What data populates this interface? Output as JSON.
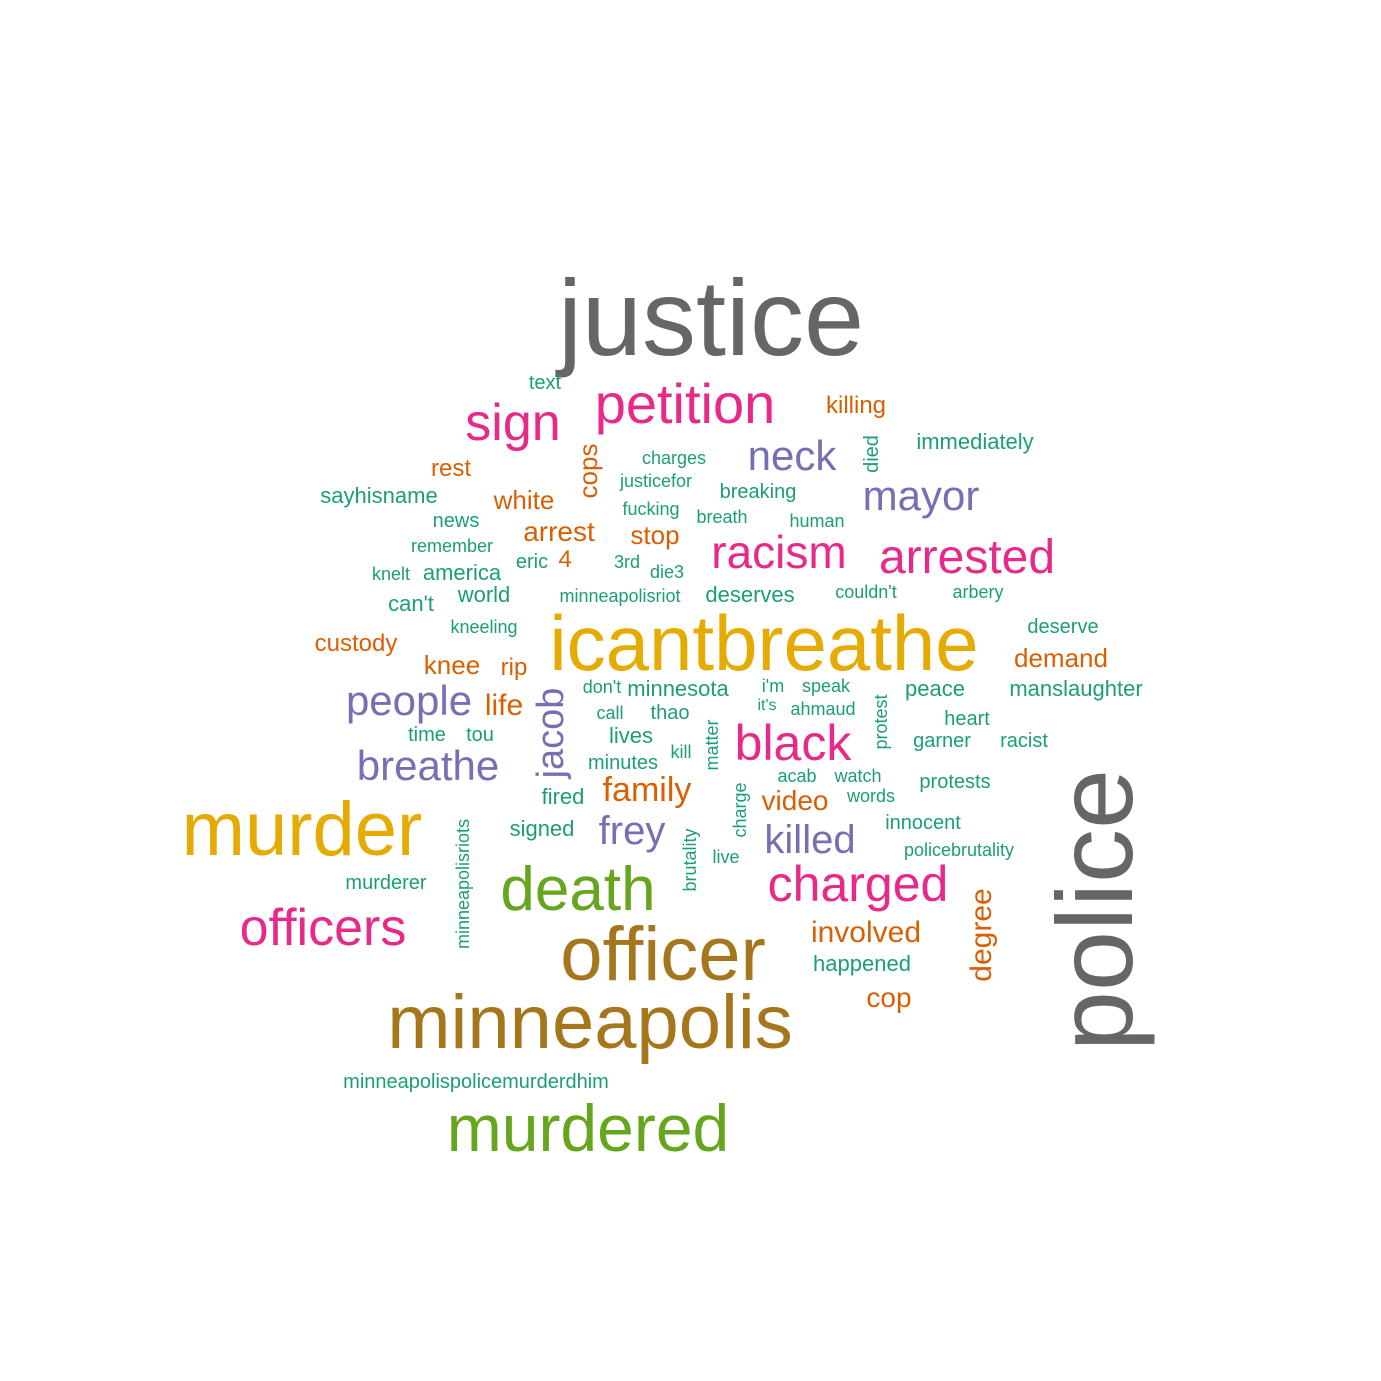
{
  "palette": {
    "gray": "#666666",
    "teal": "#1b9e77",
    "orange": "#d95f02",
    "purple": "#7570b3",
    "pink": "#e7298a",
    "green": "#66a61e",
    "gold": "#e6ab02",
    "brown": "#a6761d"
  },
  "words": [
    {
      "text": "justice",
      "color": "gray",
      "weight": 10
    },
    {
      "text": "police",
      "color": "gray",
      "weight": 10,
      "vertical": true
    },
    {
      "text": "icantbreathe",
      "color": "gold",
      "weight": 8
    },
    {
      "text": "murder",
      "color": "gold",
      "weight": 7
    },
    {
      "text": "minneapolis",
      "color": "brown",
      "weight": 8
    },
    {
      "text": "officer",
      "color": "brown",
      "weight": 8
    },
    {
      "text": "murdered",
      "color": "green",
      "weight": 7
    },
    {
      "text": "death",
      "color": "green",
      "weight": 6
    },
    {
      "text": "petition",
      "color": "pink",
      "weight": 5
    },
    {
      "text": "sign",
      "color": "pink",
      "weight": 5
    },
    {
      "text": "officers",
      "color": "pink",
      "weight": 5
    },
    {
      "text": "charged",
      "color": "pink",
      "weight": 5
    },
    {
      "text": "black",
      "color": "pink",
      "weight": 5
    },
    {
      "text": "arrested",
      "color": "pink",
      "weight": 5
    },
    {
      "text": "racism",
      "color": "pink",
      "weight": 5
    },
    {
      "text": "neck",
      "color": "purple",
      "weight": 4
    },
    {
      "text": "mayor",
      "color": "purple",
      "weight": 4
    },
    {
      "text": "people",
      "color": "purple",
      "weight": 4
    },
    {
      "text": "breathe",
      "color": "purple",
      "weight": 4
    },
    {
      "text": "frey",
      "color": "purple",
      "weight": 4
    },
    {
      "text": "killed",
      "color": "purple",
      "weight": 4
    },
    {
      "text": "jacob",
      "color": "purple",
      "weight": 4,
      "vertical": true
    },
    {
      "text": "killing",
      "color": "orange",
      "weight": 2
    },
    {
      "text": "rest",
      "color": "orange",
      "weight": 2
    },
    {
      "text": "white",
      "color": "orange",
      "weight": 2
    },
    {
      "text": "cops",
      "color": "orange",
      "weight": 2,
      "vertical": true
    },
    {
      "text": "arrest",
      "color": "orange",
      "weight": 2
    },
    {
      "text": "stop",
      "color": "orange",
      "weight": 2
    },
    {
      "text": "4",
      "color": "orange",
      "weight": 2
    },
    {
      "text": "custody",
      "color": "orange",
      "weight": 2
    },
    {
      "text": "knee",
      "color": "orange",
      "weight": 2
    },
    {
      "text": "rip",
      "color": "orange",
      "weight": 2
    },
    {
      "text": "life",
      "color": "orange",
      "weight": 2
    },
    {
      "text": "demand",
      "color": "orange",
      "weight": 2
    },
    {
      "text": "family",
      "color": "orange",
      "weight": 2
    },
    {
      "text": "video",
      "color": "orange",
      "weight": 2
    },
    {
      "text": "involved",
      "color": "orange",
      "weight": 2
    },
    {
      "text": "cop",
      "color": "orange",
      "weight": 2
    },
    {
      "text": "degree",
      "color": "orange",
      "weight": 2,
      "vertical": true
    },
    {
      "text": "text",
      "color": "teal",
      "weight": 1
    },
    {
      "text": "charges",
      "color": "teal",
      "weight": 1
    },
    {
      "text": "justicefor",
      "color": "teal",
      "weight": 1
    },
    {
      "text": "died",
      "color": "teal",
      "weight": 1,
      "vertical": true
    },
    {
      "text": "immediately",
      "color": "teal",
      "weight": 1
    },
    {
      "text": "sayhisname",
      "color": "teal",
      "weight": 1
    },
    {
      "text": "breaking",
      "color": "teal",
      "weight": 1
    },
    {
      "text": "fucking",
      "color": "teal",
      "weight": 1
    },
    {
      "text": "breath",
      "color": "teal",
      "weight": 1
    },
    {
      "text": "human",
      "color": "teal",
      "weight": 1
    },
    {
      "text": "news",
      "color": "teal",
      "weight": 1
    },
    {
      "text": "remember",
      "color": "teal",
      "weight": 1
    },
    {
      "text": "eric",
      "color": "teal",
      "weight": 1
    },
    {
      "text": "3rd",
      "color": "teal",
      "weight": 1
    },
    {
      "text": "die3",
      "color": "teal",
      "weight": 1
    },
    {
      "text": "knelt",
      "color": "teal",
      "weight": 1
    },
    {
      "text": "america",
      "color": "teal",
      "weight": 1
    },
    {
      "text": "can't",
      "color": "teal",
      "weight": 1
    },
    {
      "text": "world",
      "color": "teal",
      "weight": 1
    },
    {
      "text": "minneapolisriot",
      "color": "teal",
      "weight": 1
    },
    {
      "text": "deserves",
      "color": "teal",
      "weight": 1
    },
    {
      "text": "couldn't",
      "color": "teal",
      "weight": 1
    },
    {
      "text": "arbery",
      "color": "teal",
      "weight": 1
    },
    {
      "text": "kneeling",
      "color": "teal",
      "weight": 1
    },
    {
      "text": "deserve",
      "color": "teal",
      "weight": 1
    },
    {
      "text": "don't",
      "color": "teal",
      "weight": 1
    },
    {
      "text": "minnesota",
      "color": "teal",
      "weight": 1
    },
    {
      "text": "i'm",
      "color": "teal",
      "weight": 1
    },
    {
      "text": "speak",
      "color": "teal",
      "weight": 1
    },
    {
      "text": "peace",
      "color": "teal",
      "weight": 1
    },
    {
      "text": "manslaughter",
      "color": "teal",
      "weight": 1
    },
    {
      "text": "call",
      "color": "teal",
      "weight": 1
    },
    {
      "text": "thao",
      "color": "teal",
      "weight": 1
    },
    {
      "text": "it's",
      "color": "teal",
      "weight": 1
    },
    {
      "text": "ahmaud",
      "color": "teal",
      "weight": 1
    },
    {
      "text": "heart",
      "color": "teal",
      "weight": 1
    },
    {
      "text": "protest",
      "color": "teal",
      "weight": 1,
      "vertical": true
    },
    {
      "text": "time",
      "color": "teal",
      "weight": 1
    },
    {
      "text": "tou",
      "color": "teal",
      "weight": 1
    },
    {
      "text": "lives",
      "color": "teal",
      "weight": 1
    },
    {
      "text": "kill",
      "color": "teal",
      "weight": 1
    },
    {
      "text": "matter",
      "color": "teal",
      "weight": 1,
      "vertical": true
    },
    {
      "text": "garner",
      "color": "teal",
      "weight": 1
    },
    {
      "text": "racist",
      "color": "teal",
      "weight": 1
    },
    {
      "text": "minutes",
      "color": "teal",
      "weight": 1
    },
    {
      "text": "acab",
      "color": "teal",
      "weight": 1
    },
    {
      "text": "watch",
      "color": "teal",
      "weight": 1
    },
    {
      "text": "protests",
      "color": "teal",
      "weight": 1
    },
    {
      "text": "fired",
      "color": "teal",
      "weight": 1
    },
    {
      "text": "words",
      "color": "teal",
      "weight": 1
    },
    {
      "text": "charge",
      "color": "teal",
      "weight": 1,
      "vertical": true
    },
    {
      "text": "innocent",
      "color": "teal",
      "weight": 1
    },
    {
      "text": "signed",
      "color": "teal",
      "weight": 1
    },
    {
      "text": "minneapolisriots",
      "color": "teal",
      "weight": 1,
      "vertical": true
    },
    {
      "text": "brutality",
      "color": "teal",
      "weight": 1,
      "vertical": true
    },
    {
      "text": "live",
      "color": "teal",
      "weight": 1
    },
    {
      "text": "policebrutality",
      "color": "teal",
      "weight": 1
    },
    {
      "text": "murderer",
      "color": "teal",
      "weight": 1
    },
    {
      "text": "happened",
      "color": "teal",
      "weight": 1
    },
    {
      "text": "minneapolispolicemurderdhim",
      "color": "teal",
      "weight": 1
    }
  ]
}
